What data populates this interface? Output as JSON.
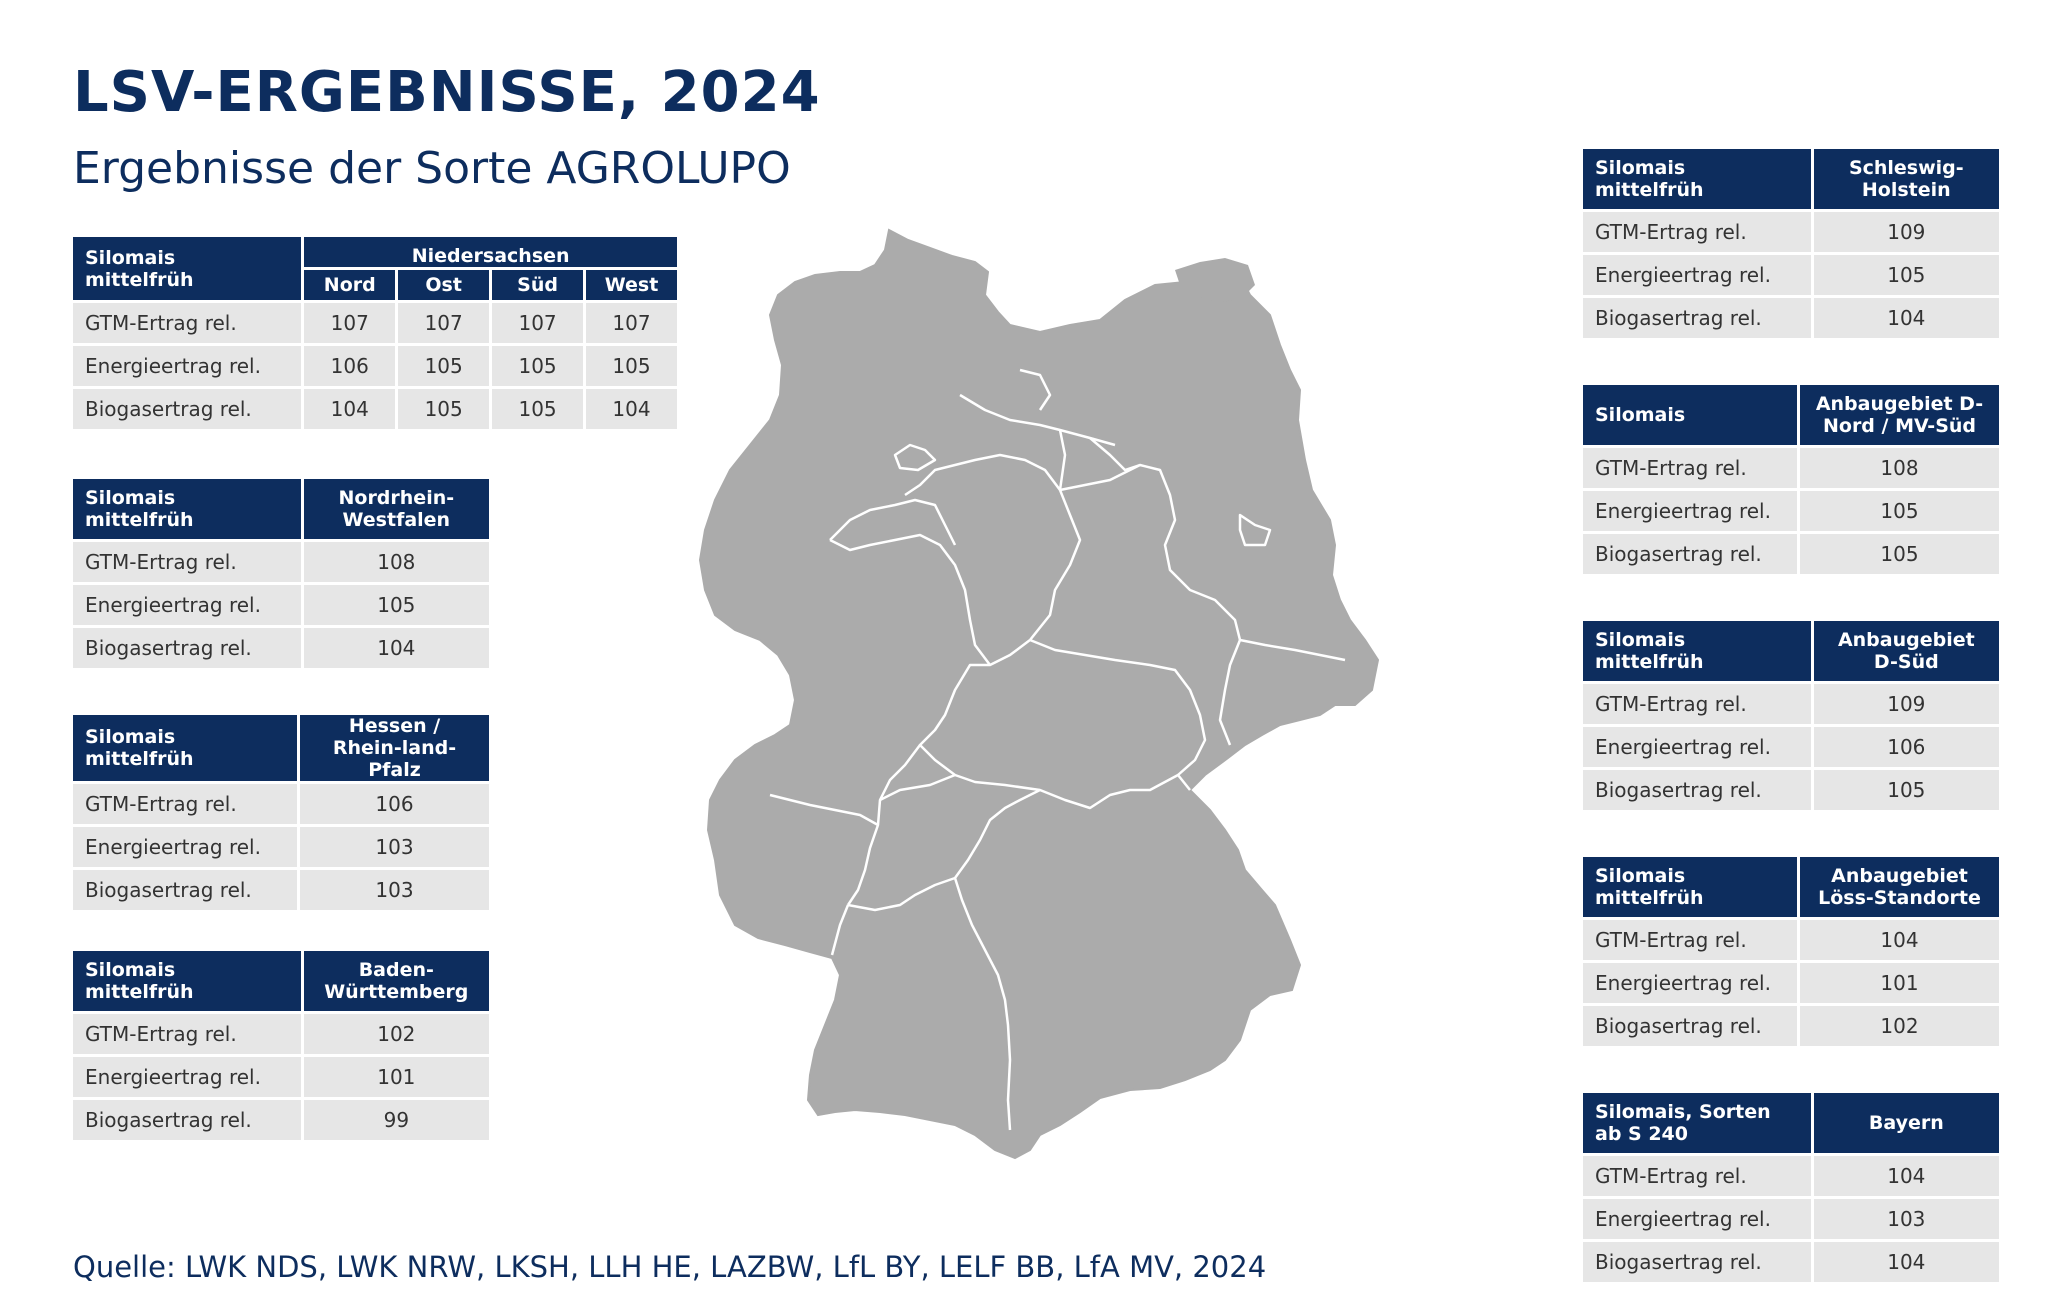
{
  "header": {
    "title": "LSV-ERGEBNISSE, 2024",
    "subtitle": "Ergebnisse der Sorte AGROLUPO"
  },
  "row_labels": [
    "GTM-Ertrag rel.",
    "Energieertrag rel.",
    "Biogasertrag rel."
  ],
  "niedersachsen": {
    "label": "Silomais mittelfrüh",
    "region": "Niedersachsen",
    "subregions": [
      "Nord",
      "Ost",
      "Süd",
      "West"
    ],
    "rows": [
      [
        "GTM-Ertrag rel.",
        "107",
        "107",
        "107",
        "107"
      ],
      [
        "Energieertrag rel.",
        "106",
        "105",
        "105",
        "105"
      ],
      [
        "Biogasertrag rel.",
        "104",
        "105",
        "105",
        "104"
      ]
    ]
  },
  "left_tables": [
    {
      "label": "Silomais mittelfrüh",
      "region": "Nordrhein-Westfalen",
      "values": [
        "108",
        "105",
        "104"
      ]
    },
    {
      "label": "Silomais mittelfrüh",
      "region": "Hessen / Rhein-land-Pfalz",
      "values": [
        "106",
        "103",
        "103"
      ]
    },
    {
      "label": "Silomais mittelfrüh",
      "region": "Baden-Württemberg",
      "values": [
        "102",
        "101",
        "99"
      ]
    }
  ],
  "right_tables": [
    {
      "label": "Silomais mittelfrüh",
      "region": "Schleswig-Holstein",
      "values": [
        "109",
        "105",
        "104"
      ]
    },
    {
      "label": "Silomais",
      "region": "Anbaugebiet D-Nord / MV-Süd",
      "values": [
        "108",
        "105",
        "105"
      ]
    },
    {
      "label": "Silomais mittelfrüh",
      "region": "Anbaugebiet D-Süd",
      "values": [
        "109",
        "106",
        "105"
      ]
    },
    {
      "label": "Silomais mittelfrüh",
      "region": "Anbaugebiet Löss-Standorte",
      "values": [
        "104",
        "101",
        "102"
      ]
    },
    {
      "label": "Silomais, Sorten ab S 240",
      "region": "Bayern",
      "values": [
        "104",
        "103",
        "104"
      ]
    }
  ],
  "footer": {
    "source": "Quelle: LWK NDS, LWK NRW, LKSH, LLH HE, LAZBW, LfL BY, LELF BB, LfA MV, 2024"
  },
  "colors": {
    "header_bg": "#0d2d5e",
    "cell_bg": "#e6e6e6",
    "map_fill": "#ababab",
    "border_line": "#ffffff"
  }
}
